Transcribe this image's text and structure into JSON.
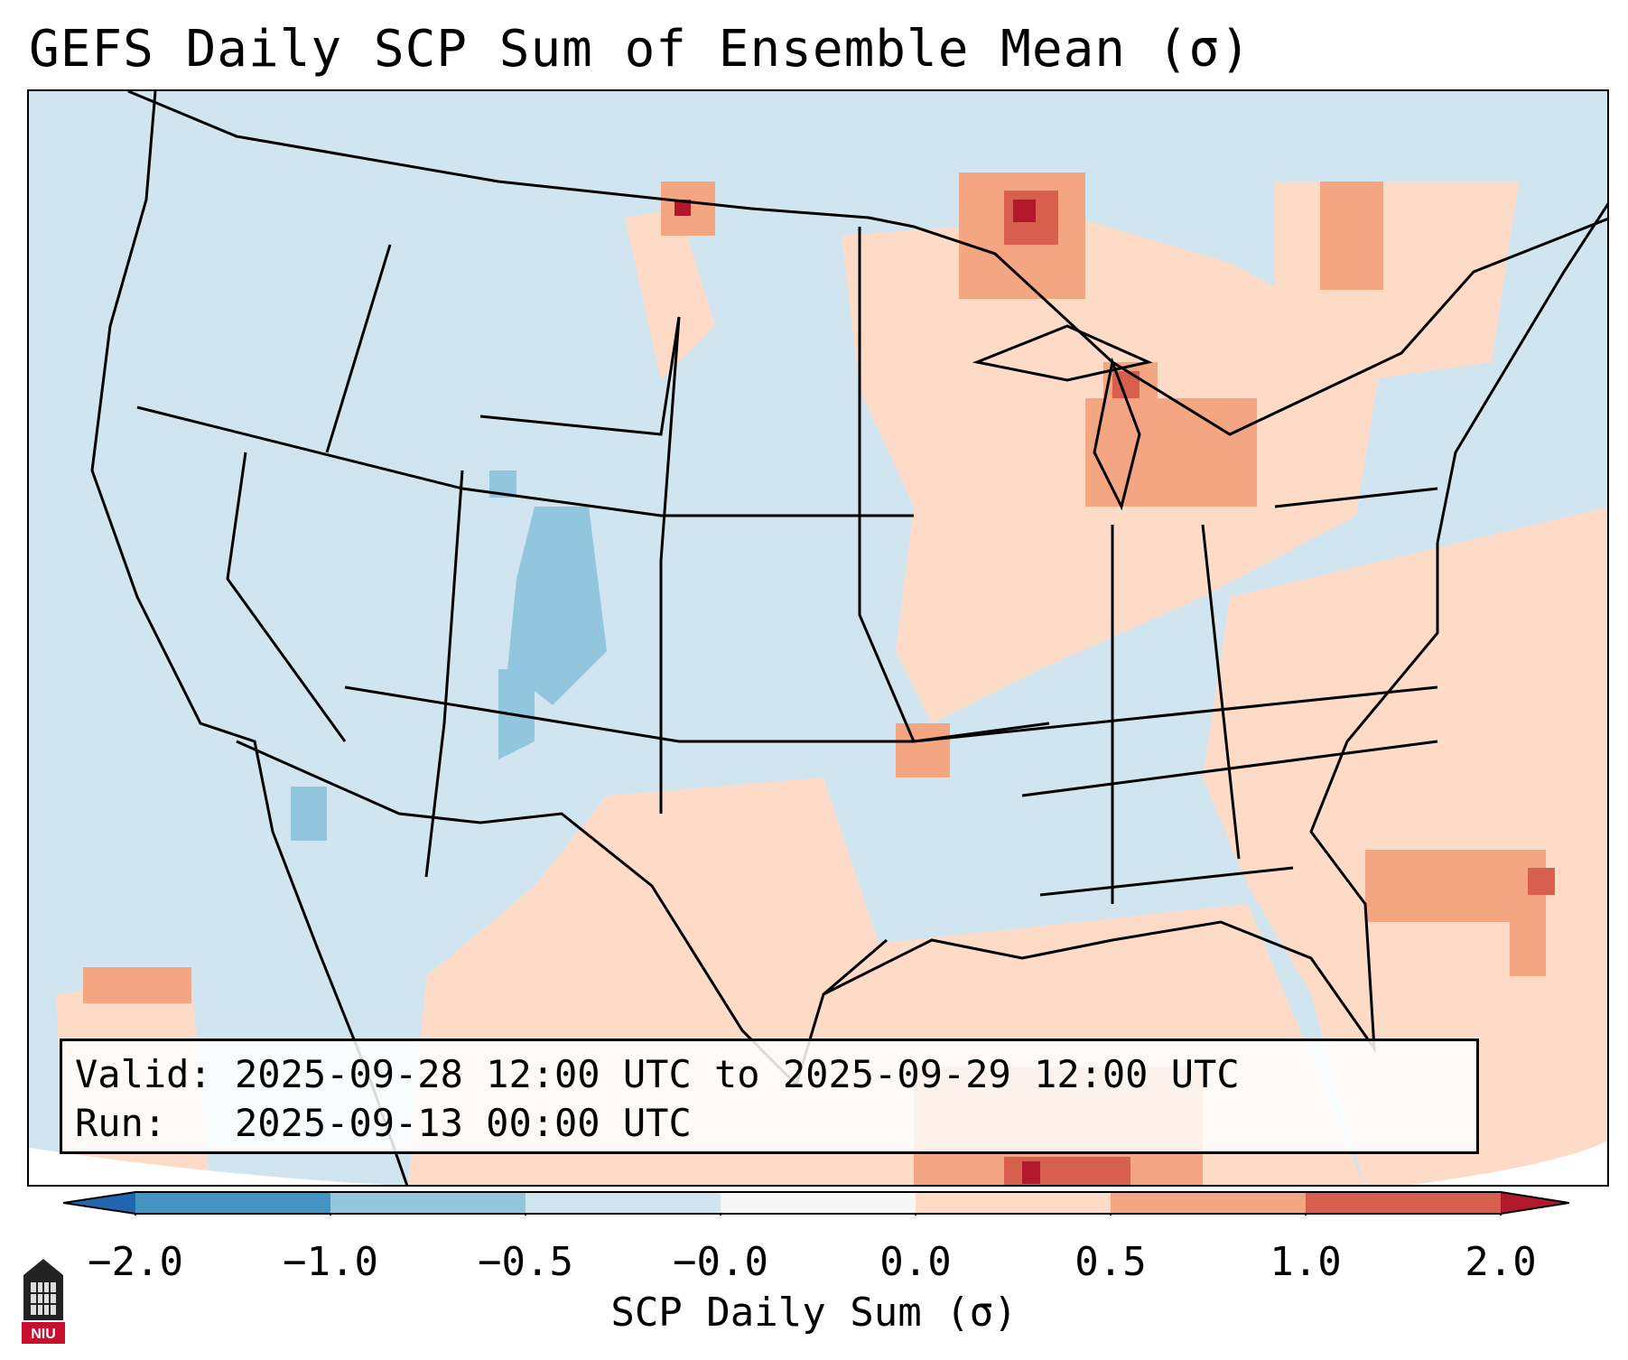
{
  "title": "GEFS Daily SCP Sum of Ensemble Mean (σ)",
  "info": {
    "valid_label": "Valid:",
    "valid_value": "2025-09-28 12:00 UTC to 2025-09-29 12:00 UTC",
    "run_label": "Run:",
    "run_value": "2025-09-13 00:00 UTC"
  },
  "colorbar": {
    "label": "SCP Daily Sum (σ)",
    "ticks": [
      "−2.0",
      "−1.0",
      "−0.5",
      "−0.0",
      "0.0",
      "0.5",
      "1.0",
      "2.0"
    ],
    "colors": {
      "below_min": "#2166ac",
      "c1": "#4393c3",
      "c2": "#92c5de",
      "c3": "#d1e5f0",
      "c4": "#f7f7f7",
      "c5": "#fddbc7",
      "c6": "#f4a582",
      "c7": "#d6604d",
      "above_max": "#b2182b"
    }
  },
  "logo": {
    "text": "NIU",
    "color": "#c8102e"
  },
  "map_colors": {
    "ocean_background": "#cfe3ef",
    "neutral": "#d1e5f0",
    "light_pos": "#fddbc7",
    "mid_pos": "#f4a582",
    "strong_pos": "#d6604d",
    "max_pos": "#b2182b",
    "light_neg": "#92c5de",
    "borders": "#000000"
  }
}
